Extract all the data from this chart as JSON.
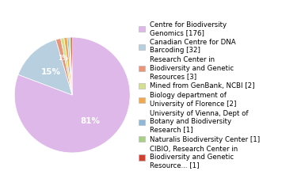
{
  "labels": [
    "Centre for Biodiversity\nGenomics [176]",
    "Canadian Centre for DNA\nBarcoding [32]",
    "Research Center in\nBiodiversity and Genetic\nResources [3]",
    "Mined from GenBank, NCBI [2]",
    "Biology department of\nUniversity of Florence [2]",
    "University of Vienna, Dept of\nBotany and Biodiversity\nResearch [1]",
    "Naturalis Biodiversity Center [1]",
    "CIBIO, Research Center in\nBiodiversity and Genetic\nResource... [1]"
  ],
  "values": [
    176,
    32,
    3,
    2,
    2,
    1,
    1,
    1
  ],
  "colors": [
    "#ddb8e8",
    "#b8cfe0",
    "#e8957a",
    "#d4df90",
    "#f0a850",
    "#90b8d8",
    "#a8cf8a",
    "#d04030"
  ],
  "figsize": [
    3.8,
    2.4
  ],
  "dpi": 100,
  "legend_fontsize": 6.2,
  "pct_fontsize": 7.5,
  "small_pct_fontsize": 5.5
}
